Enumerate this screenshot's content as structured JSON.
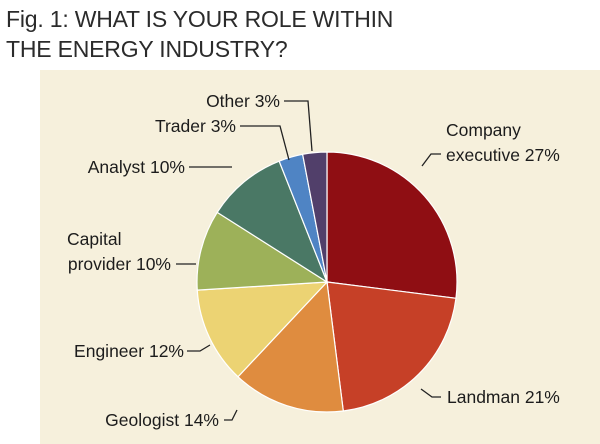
{
  "title": {
    "line1": "Fig. 1:  WHAT IS YOUR ROLE WITHIN",
    "line2": "THE ENERGY INDUSTRY?"
  },
  "colors": {
    "panel_background": "#f6f0dc",
    "leader_line": "#222222"
  },
  "chart_data": {
    "type": "pie",
    "title": "WHAT IS YOUR ROLE WITHIN THE ENERGY INDUSTRY?",
    "unit": "%",
    "slices": [
      {
        "label": "Company executive",
        "value": 27,
        "color": "#8f0e13"
      },
      {
        "label": "Landman",
        "value": 21,
        "color": "#c64027"
      },
      {
        "label": "Geologist",
        "value": 14,
        "color": "#df8c3f"
      },
      {
        "label": "Engineer",
        "value": 12,
        "color": "#ecd373"
      },
      {
        "label": "Capital provider",
        "value": 10,
        "color": "#9db159"
      },
      {
        "label": "Analyst",
        "value": 10,
        "color": "#4a7865"
      },
      {
        "label": "Trader",
        "value": 3,
        "color": "#4f84c4"
      },
      {
        "label": "Other",
        "value": 3,
        "color": "#513f6a"
      }
    ],
    "labels": [
      {
        "line1": "Company",
        "line2": "executive 27%"
      },
      {
        "line1": "Landman 21%"
      },
      {
        "line1": "Geologist 14%"
      },
      {
        "line1": "Engineer 12%"
      },
      {
        "line1": "Capital",
        "line2": "provider 10%"
      },
      {
        "line1": "Analyst 10%"
      },
      {
        "line1": "Trader 3%"
      },
      {
        "line1": "Other 3%"
      }
    ]
  }
}
